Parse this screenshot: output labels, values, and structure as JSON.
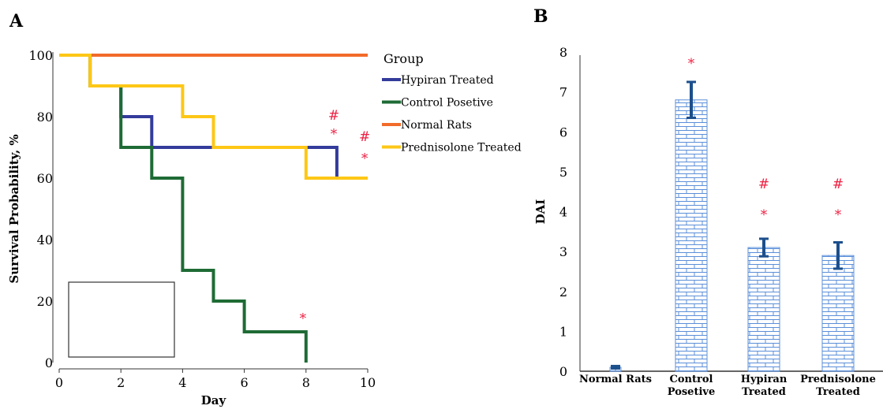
{
  "chart_data": [
    {
      "panel": "A",
      "type": "line",
      "step": true,
      "xlabel": "Day",
      "ylabel": "Survival Probability, %",
      "xlim": [
        0,
        10
      ],
      "ylim": [
        0,
        100
      ],
      "xticks": [
        "0",
        "2",
        "4",
        "6",
        "8",
        "10"
      ],
      "yticks": [
        "0",
        "20",
        "40",
        "60",
        "80",
        "100"
      ],
      "legend_title": "Group",
      "legend_position": "right",
      "series": [
        {
          "name": "Normal Rats",
          "color": "#f26b2a",
          "x": [
            0,
            10
          ],
          "y": [
            100,
            100
          ]
        },
        {
          "name": "Hypiran Treated",
          "color": "#333b9b",
          "x": [
            0,
            1,
            2,
            3,
            8,
            9,
            9
          ],
          "y": [
            100,
            90,
            80,
            70,
            70,
            60,
            60
          ]
        },
        {
          "name": "Control Posetive",
          "color": "#1e6b35",
          "x": [
            0,
            1,
            2,
            3,
            4,
            5,
            6,
            8,
            8
          ],
          "y": [
            100,
            90,
            70,
            60,
            30,
            20,
            10,
            10,
            0
          ]
        },
        {
          "name": "Prednisolone Treated",
          "color": "#fdc716",
          "x": [
            0,
            1,
            4,
            5,
            8,
            10
          ],
          "y": [
            100,
            90,
            80,
            70,
            60,
            60
          ]
        }
      ],
      "annotations": [
        {
          "text": "#",
          "x": 8.9,
          "y": 79
        },
        {
          "text": "*",
          "x": 8.9,
          "y": 73
        },
        {
          "text": "#",
          "x": 9.9,
          "y": 72
        },
        {
          "text": "*",
          "x": 9.9,
          "y": 65
        },
        {
          "text": "*",
          "x": 7.9,
          "y": 13
        }
      ]
    },
    {
      "panel": "B",
      "type": "bar",
      "ylabel": "DAI",
      "ylim": [
        0,
        8
      ],
      "yticks": [
        "0",
        "1",
        "2",
        "3",
        "4",
        "5",
        "6",
        "7",
        "8"
      ],
      "categories": [
        [
          "Normal Rats"
        ],
        [
          "Control",
          "Posetive"
        ],
        [
          "Hypiran",
          "Treated"
        ],
        [
          "Prednisolone",
          "Treated"
        ]
      ],
      "values": [
        0.1,
        6.8,
        3.1,
        2.9
      ],
      "errors": [
        0.03,
        0.45,
        0.22,
        0.33
      ],
      "bar_color": "#5b8fd9",
      "error_color": "#1c4f8c",
      "annotations": [
        {
          "bar": 1,
          "marks": [
            "*"
          ]
        },
        {
          "bar": 2,
          "marks": [
            "#",
            "*"
          ]
        },
        {
          "bar": 3,
          "marks": [
            "#",
            "*"
          ]
        }
      ]
    }
  ]
}
